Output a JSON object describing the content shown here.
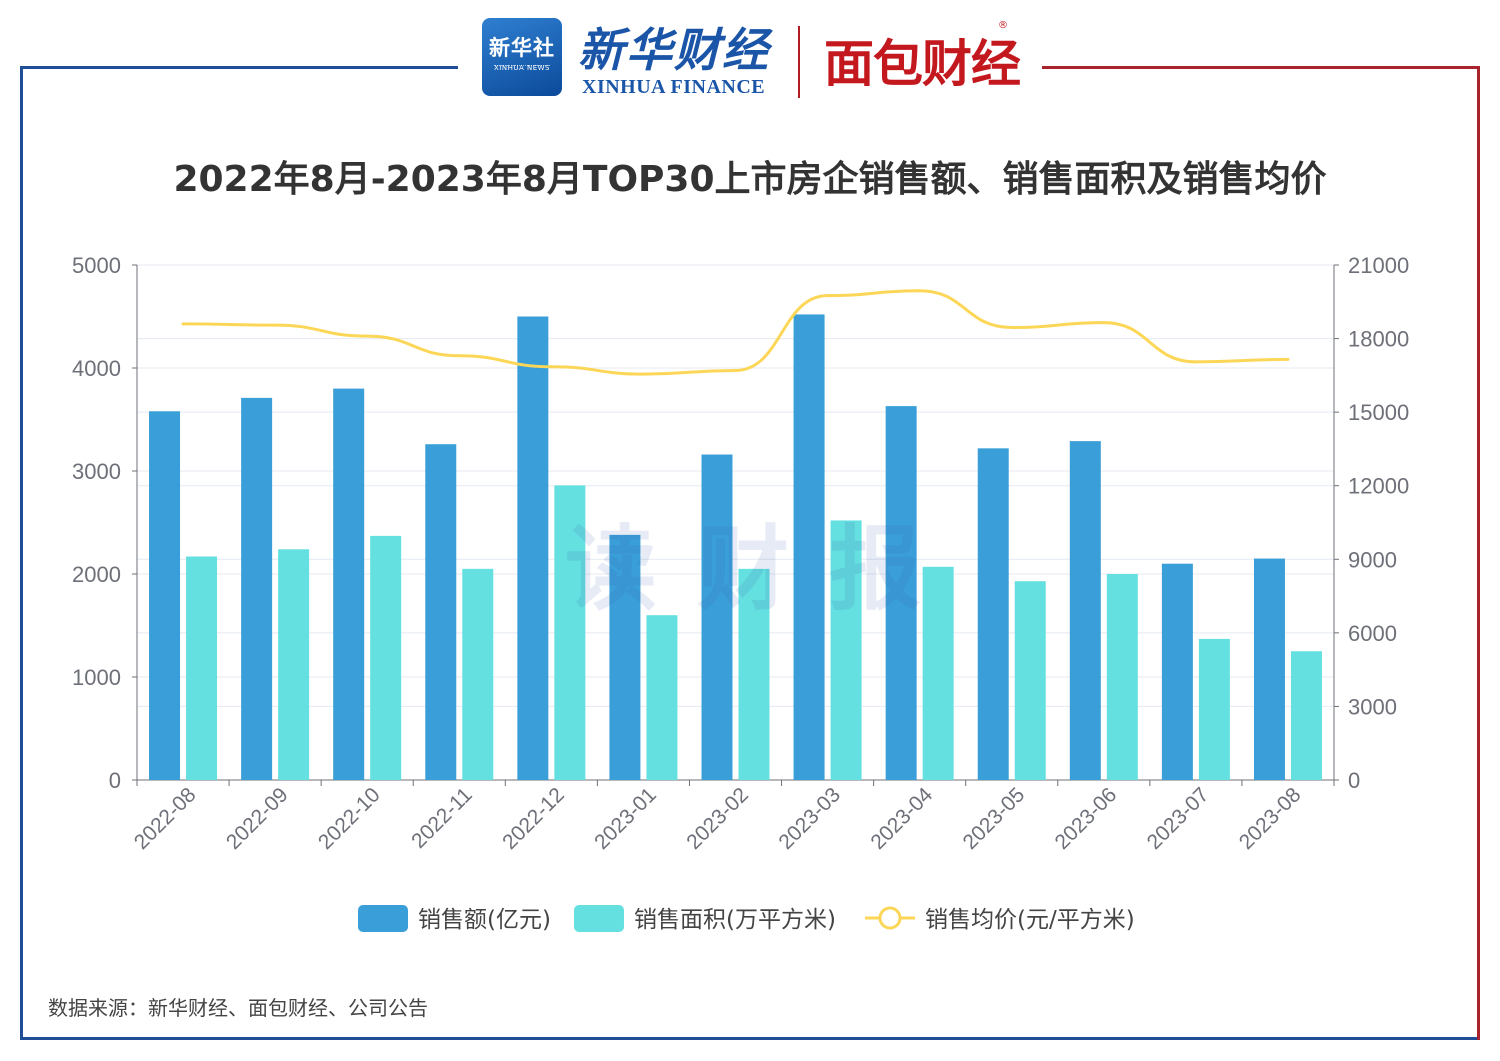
{
  "header": {
    "xinhua_badge_cn": "新华社",
    "xinhua_badge_en": "XINHUA NEWS",
    "xinhua_finance_cn": "新华财经",
    "xinhua_finance_en": "XINHUA FINANCE",
    "mianbao_cn": "面包财经",
    "mianbao_mark": "®"
  },
  "colors": {
    "frame_blue": "#1f4e96",
    "frame_red": "#a8232b",
    "sales": "#3a9fd8",
    "area": "#64e0e0",
    "price": "#fcd757"
  },
  "watermark": "读财报",
  "source": "数据来源：新华财经、面包财经、公司公告",
  "chart_data": {
    "type": "bar",
    "title": "2022年8月-2023年8月TOP30上市房企销售额、销售面积及销售均价",
    "categories": [
      "2022-08",
      "2022-09",
      "2022-10",
      "2022-11",
      "2022-12",
      "2023-01",
      "2023-02",
      "2023-03",
      "2023-04",
      "2023-05",
      "2023-06",
      "2023-07",
      "2023-08"
    ],
    "series": [
      {
        "name": "销售额(亿元)",
        "type": "bar",
        "axis": "left",
        "values": [
          3580,
          3710,
          3800,
          3260,
          4500,
          2380,
          3160,
          4520,
          3630,
          3220,
          3290,
          2100,
          2150
        ]
      },
      {
        "name": "销售面积(万平方米)",
        "type": "bar",
        "axis": "left",
        "values": [
          2170,
          2240,
          2370,
          2050,
          2860,
          1600,
          2050,
          2520,
          2070,
          1930,
          2000,
          1370,
          1250
        ]
      },
      {
        "name": "销售均价(元/平方米)",
        "type": "line",
        "axis": "right",
        "values": [
          18600,
          18550,
          18100,
          17300,
          16850,
          16550,
          16700,
          19750,
          19950,
          18450,
          18650,
          17050,
          17150
        ]
      }
    ],
    "y_left": {
      "range": [
        0,
        5000
      ],
      "ticks": [
        "0",
        "1000",
        "2000",
        "3000",
        "4000",
        "5000"
      ]
    },
    "y_right": {
      "range": [
        0,
        21000
      ],
      "ticks": [
        "0",
        "3000",
        "6000",
        "9000",
        "12000",
        "15000",
        "18000",
        "21000"
      ]
    },
    "legend_position": "bottom-center",
    "grid": true
  }
}
